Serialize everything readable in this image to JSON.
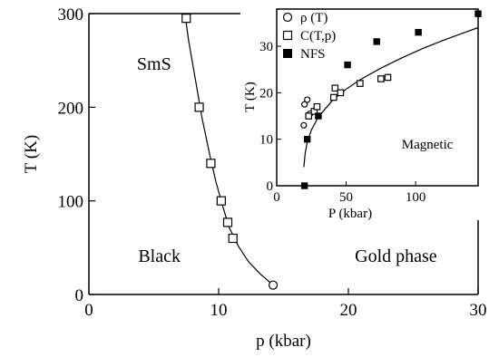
{
  "chart_data": [
    {
      "type": "line",
      "role": "main",
      "xlabel": "p (kbar)",
      "ylabel": "T (K)",
      "xlim": [
        0,
        30
      ],
      "ylim": [
        0,
        300
      ],
      "xticks": [
        "0",
        "10",
        "20",
        "30"
      ],
      "yticks": [
        "0",
        "100",
        "200",
        "300"
      ],
      "regions": [
        {
          "label": "SmS",
          "x": 3.7,
          "y": 240
        },
        {
          "label": "Black",
          "x": 3.8,
          "y": 35
        },
        {
          "label": "Gold phase",
          "x": 20.5,
          "y": 35
        }
      ],
      "series": [
        {
          "marker": "open-square",
          "points": [
            [
              7.5,
              295
            ],
            [
              8.5,
              200
            ],
            [
              9.4,
              140
            ],
            [
              10.2,
              100
            ],
            [
              10.7,
              77
            ],
            [
              11.1,
              60
            ]
          ]
        },
        {
          "marker": "open-circle",
          "points": [
            [
              14.2,
              10
            ]
          ]
        },
        {
          "marker": "line",
          "points": [
            [
              7.4,
              300
            ],
            [
              7.7,
              270
            ],
            [
              8.2,
              230
            ],
            [
              8.7,
              190
            ],
            [
              9.3,
              150
            ],
            [
              9.8,
              120
            ],
            [
              10.3,
              95
            ],
            [
              10.8,
              72
            ],
            [
              11.5,
              52
            ],
            [
              12.3,
              35
            ],
            [
              13.2,
              22
            ],
            [
              14.2,
              10
            ]
          ]
        }
      ]
    },
    {
      "type": "scatter",
      "role": "inset",
      "xlabel": "P (kbar)",
      "ylabel": "T (K)",
      "xlim": [
        0,
        145
      ],
      "ylim": [
        0,
        38
      ],
      "xticks": [
        "0",
        "50",
        "100"
      ],
      "yticks": [
        "0",
        "10",
        "20",
        "30"
      ],
      "region": {
        "label": "Magnetic",
        "x": 90,
        "y": 8
      },
      "series": [
        {
          "name": "ρ (T)",
          "marker": "open-circle",
          "points": [
            [
              19.5,
              13
            ],
            [
              20,
              17.5
            ],
            [
              22,
              18.5
            ],
            [
              24,
              15.5
            ]
          ]
        },
        {
          "name": "C(T,p)",
          "marker": "open-square",
          "points": [
            [
              23,
              15
            ],
            [
              27,
              16
            ],
            [
              29,
              17
            ],
            [
              41,
              19
            ],
            [
              42,
              21
            ],
            [
              46,
              20
            ],
            [
              60,
              22
            ],
            [
              75,
              23
            ],
            [
              80,
              23.3
            ]
          ]
        },
        {
          "name": "NFS",
          "marker": "filled-square",
          "points": [
            [
              20,
              0
            ],
            [
              22,
              10
            ],
            [
              30,
              15
            ],
            [
              51,
              26
            ],
            [
              72,
              31
            ],
            [
              102,
              33
            ],
            [
              145,
              37
            ]
          ]
        },
        {
          "marker": "line",
          "points": [
            [
              19.5,
              4
            ],
            [
              20.5,
              7
            ],
            [
              22,
              9.5
            ],
            [
              25,
              12
            ],
            [
              30,
              14.8
            ],
            [
              40,
              18.3
            ],
            [
              50,
              20.8
            ],
            [
              60,
              22.8
            ],
            [
              75,
              25.3
            ],
            [
              90,
              27.5
            ],
            [
              105,
              29.5
            ],
            [
              120,
              31.3
            ],
            [
              145,
              34
            ]
          ]
        }
      ]
    }
  ]
}
